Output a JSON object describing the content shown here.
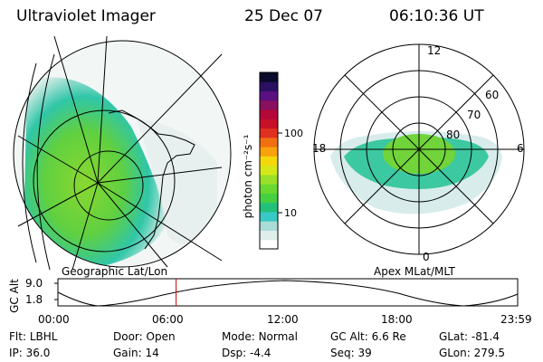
{
  "header": {
    "title": "Ultraviolet Imager",
    "date": "25 Dec 07",
    "time": "06:10:36 UT"
  },
  "geo_panel": {
    "label": "Geographic Lat/Lon"
  },
  "mag_panel": {
    "label": "Apex MLat/MLT",
    "mlt_labels": [
      "12",
      "18",
      "6",
      "0"
    ],
    "lat_labels": [
      "60",
      "70",
      "80"
    ]
  },
  "colorbar": {
    "unit_label": "photon cm⁻²s⁻¹",
    "ticks": [
      "100",
      "10"
    ],
    "scale": "log",
    "colors": [
      "#ffffff",
      "#dfeeea",
      "#a9dcd6",
      "#39c8c6",
      "#22c07a",
      "#44d040",
      "#6ad830",
      "#9ae028",
      "#d4e818",
      "#f4d80c",
      "#f8a20c",
      "#f07010",
      "#e03020",
      "#c81028",
      "#b40838",
      "#8a1060",
      "#5a1080",
      "#2a1060",
      "#0a0a2a"
    ]
  },
  "alt_plot": {
    "ylabel": "GC Alt",
    "yticks": [
      "9.0",
      "1.8"
    ],
    "xticks": [
      "00:00",
      "06:00",
      "12:00",
      "18:00",
      "23:59"
    ],
    "marker_time": "06:10",
    "marker_color": "#cc0000"
  },
  "params": {
    "row1": [
      {
        "key": "Flt:",
        "value": "LBHL"
      },
      {
        "key": "Door:",
        "value": "Open"
      },
      {
        "key": "Mode:",
        "value": "Normal"
      },
      {
        "key": "GC Alt:",
        "value": "6.6 Re"
      },
      {
        "key": "GLat:",
        "value": "-81.4"
      }
    ],
    "row2": [
      {
        "key": "IP:",
        "value": "36.0"
      },
      {
        "key": "Gain:",
        "value": "14"
      },
      {
        "key": "Dsp:",
        "value": "-4.4"
      },
      {
        "key": "Seq:",
        "value": "39"
      },
      {
        "key": "GLon:",
        "value": "279.5"
      }
    ]
  }
}
